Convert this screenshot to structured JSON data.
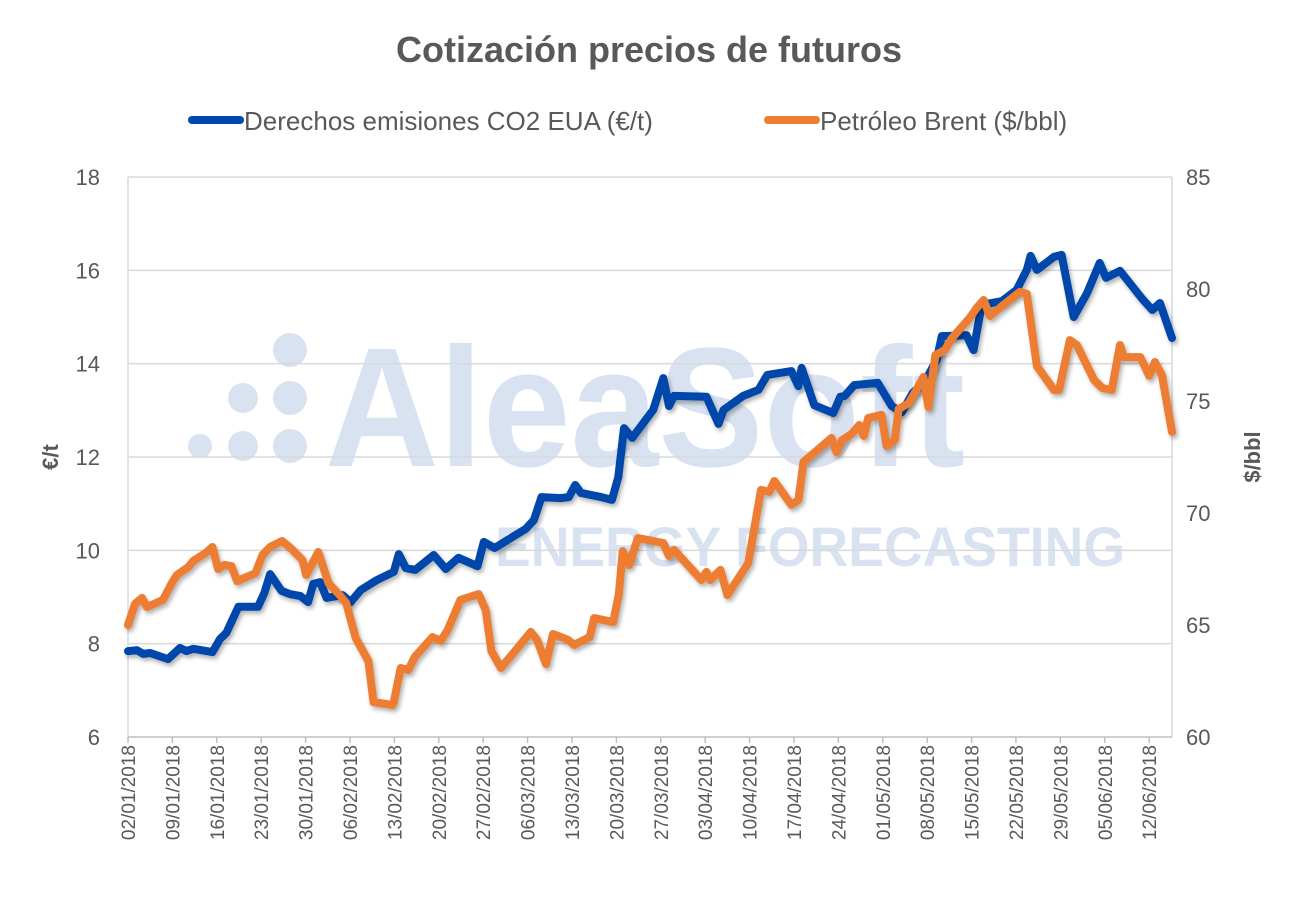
{
  "chart_data": {
    "type": "line",
    "title": "Cotización precios de futuros",
    "watermark": {
      "brand": "AleaSoft",
      "tagline": "ENERGY FORECASTING"
    },
    "x_unit": "days since 02/01/2018",
    "xlim": [
      0,
      164.6
    ],
    "x_tick_labels": [
      "02/01/2018",
      "09/01/2018",
      "16/01/2018",
      "23/01/2018",
      "30/01/2018",
      "06/02/2018",
      "13/02/2018",
      "20/02/2018",
      "27/02/2018",
      "06/03/2018",
      "13/03/2018",
      "20/03/2018",
      "27/03/2018",
      "03/04/2018",
      "10/04/2018",
      "17/04/2018",
      "24/04/2018",
      "01/05/2018",
      "08/05/2018",
      "15/05/2018",
      "22/05/2018",
      "29/05/2018",
      "05/06/2018",
      "12/06/2018"
    ],
    "y_left": {
      "label": "€/t",
      "ylim": [
        6,
        18
      ],
      "ticks": [
        "6",
        "8",
        "10",
        "12",
        "14",
        "16",
        "18"
      ]
    },
    "y_right": {
      "label": "$/bbl",
      "ylim": [
        60,
        85
      ],
      "ticks": [
        "60",
        "65",
        "70",
        "75",
        "80",
        "85"
      ]
    },
    "grid": true,
    "legend_position": "top",
    "series": [
      {
        "name": "Derechos emisiones CO2 EUA (€/t)",
        "axis": "left",
        "color": "#0047ab",
        "x": [
          0,
          1.4,
          2.4,
          3.5,
          6.3,
          8.2,
          9.2,
          10.3,
          13.3,
          14.5,
          15.5,
          17.4,
          19.0,
          20.5,
          21.5,
          22.4,
          24.2,
          25.6,
          27.2,
          28.4,
          29.2,
          30.3,
          31.3,
          33.8,
          35.1,
          36.7,
          39.2,
          41.9,
          42.7,
          43.8,
          45.3,
          48.2,
          50.1,
          52.1,
          55.1,
          56.1,
          57.8,
          60.3,
          62.7,
          64.0,
          65.2,
          68.2,
          69.5,
          70.5,
          71.4,
          74.6,
          76.3,
          77.3,
          78.2,
          79.5,
          82.8,
          84.4,
          85.3,
          86.1,
          91.2,
          93.1,
          93.9,
          97.0,
          99.4,
          100.8,
          104.6,
          105.7,
          106.2,
          108.2,
          111.2,
          112.3,
          113.0,
          114.5,
          118.2,
          120.4,
          122.0,
          123.7,
          125.6,
          127.5,
          128.3,
          132.2,
          133.3,
          134.6,
          137.8,
          140.1,
          141.7,
          142.3,
          143.3,
          146.0,
          147.2,
          149.1,
          151.2,
          153.2,
          154.2,
          156.4,
          159.9,
          161.5,
          162.7,
          164.6
        ],
        "values": [
          7.84,
          7.86,
          7.78,
          7.8,
          7.67,
          7.91,
          7.84,
          7.89,
          7.82,
          8.1,
          8.23,
          8.79,
          8.79,
          8.79,
          9.09,
          9.49,
          9.13,
          9.06,
          9.02,
          8.89,
          9.28,
          9.32,
          8.98,
          9.04,
          8.89,
          9.15,
          9.36,
          9.54,
          9.92,
          9.62,
          9.58,
          9.9,
          9.6,
          9.84,
          9.66,
          10.18,
          10.05,
          10.26,
          10.46,
          10.65,
          11.14,
          11.12,
          11.14,
          11.4,
          11.23,
          11.14,
          11.08,
          11.57,
          12.62,
          12.41,
          13.01,
          13.69,
          13.09,
          13.31,
          13.29,
          12.71,
          13.01,
          13.31,
          13.44,
          13.76,
          13.84,
          13.52,
          13.91,
          13.11,
          12.94,
          13.29,
          13.31,
          13.54,
          13.59,
          13.09,
          12.96,
          13.37,
          13.61,
          14.08,
          14.59,
          14.61,
          14.29,
          15.26,
          15.34,
          15.58,
          16.01,
          16.31,
          16.01,
          16.29,
          16.33,
          15.0,
          15.51,
          16.16,
          15.84,
          15.99,
          15.39,
          15.15,
          15.3,
          14.55
        ]
      },
      {
        "name": "Petróleo Brent ($/bbl)",
        "axis": "right",
        "color": "#ed7d31",
        "x": [
          0,
          1.1,
          2.2,
          3.0,
          5.5,
          7.0,
          7.7,
          9.5,
          10.3,
          12.2,
          13.3,
          14.2,
          15.2,
          16.3,
          17.2,
          20.1,
          21.2,
          22.4,
          24.3,
          25.8,
          27.5,
          28.1,
          30.0,
          31.6,
          33.5,
          34.4,
          35.9,
          37.9,
          38.7,
          41.7,
          41.9,
          43.0,
          44.2,
          45.2,
          48.0,
          49.3,
          50.4,
          52.4,
          55.3,
          56.4,
          57.3,
          58.8,
          63.5,
          64.5,
          65.9,
          67.0,
          69.4,
          70.3,
          72.8,
          73.5,
          76.5,
          77.4,
          78.0,
          79.0,
          80.4,
          84.4,
          85.3,
          86.1,
          90.4,
          91.2,
          91.8,
          93.4,
          94.5,
          97.8,
          99.1,
          99.8,
          101.1,
          101.9,
          104.6,
          105.7,
          106.5,
          110.9,
          111.7,
          112.6,
          114.1,
          115.3,
          116.0,
          116.7,
          118.8,
          119.6,
          120.9,
          121.5,
          123.1,
          124.3,
          125.4,
          126.2,
          127.3,
          128.8,
          129.9,
          132.7,
          133.8,
          134.9,
          135.9,
          137.8,
          140.6,
          141.7,
          143.3,
          146.0,
          146.8,
          148.5,
          149.6,
          152.3,
          153.6,
          155.1,
          156.4,
          157.0,
          159.6,
          161.0,
          161.9,
          163.0,
          164.6
        ],
        "values": [
          65.0,
          65.94,
          66.21,
          65.8,
          66.12,
          66.92,
          67.23,
          67.59,
          67.86,
          68.21,
          68.48,
          67.5,
          67.68,
          67.63,
          66.96,
          67.32,
          68.13,
          68.48,
          68.75,
          68.39,
          67.9,
          67.23,
          68.26,
          66.88,
          66.29,
          65.98,
          64.42,
          63.39,
          61.56,
          61.43,
          61.56,
          63.08,
          62.99,
          63.57,
          64.46,
          64.29,
          64.78,
          66.12,
          66.38,
          65.67,
          63.84,
          63.08,
          64.69,
          64.33,
          63.26,
          64.6,
          64.33,
          64.11,
          64.46,
          65.31,
          65.13,
          66.38,
          68.3,
          67.68,
          68.88,
          68.66,
          68.08,
          68.35,
          67.01,
          67.37,
          67.01,
          67.46,
          66.34,
          67.77,
          69.91,
          71.03,
          70.94,
          71.43,
          70.36,
          70.58,
          72.28,
          73.35,
          72.72,
          73.26,
          73.53,
          73.93,
          73.44,
          74.24,
          74.38,
          72.99,
          73.26,
          74.64,
          74.91,
          75.49,
          76.07,
          74.73,
          77.05,
          77.28,
          77.81,
          78.71,
          79.15,
          79.51,
          78.79,
          79.24,
          79.87,
          79.78,
          76.56,
          75.49,
          75.49,
          77.72,
          77.5,
          75.94,
          75.58,
          75.49,
          77.5,
          76.96,
          76.96,
          76.12,
          76.74,
          76.16,
          73.62
        ]
      }
    ]
  }
}
